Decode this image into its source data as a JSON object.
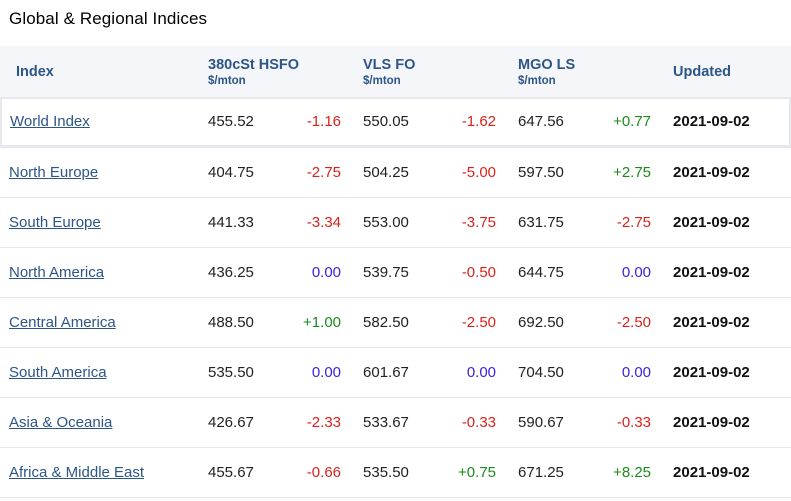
{
  "title": "Global & Regional Indices",
  "columns": {
    "index": "Index",
    "hsfo": {
      "name": "380cSt HSFO",
      "unit": "$/mton"
    },
    "vlsfo": {
      "name": "VLS FO",
      "unit": "$/mton"
    },
    "mgo": {
      "name": "MGO LS",
      "unit": "$/mton"
    },
    "updated": "Updated"
  },
  "colors": {
    "header_text": "#2d5587",
    "negative": "#d9221c",
    "positive": "#1b8a1b",
    "zero": "#3b1ee0"
  },
  "rows": [
    {
      "name": "World Index",
      "hsfo": "455.52",
      "hsfo_chg": "-1.16",
      "vlsfo": "550.05",
      "vlsfo_chg": "-1.62",
      "mgo": "647.56",
      "mgo_chg": "+0.77",
      "updated": "2021-09-02"
    },
    {
      "name": "North Europe",
      "hsfo": "404.75",
      "hsfo_chg": "-2.75",
      "vlsfo": "504.25",
      "vlsfo_chg": "-5.00",
      "mgo": "597.50",
      "mgo_chg": "+2.75",
      "updated": "2021-09-02"
    },
    {
      "name": "South Europe",
      "hsfo": "441.33",
      "hsfo_chg": "-3.34",
      "vlsfo": "553.00",
      "vlsfo_chg": "-3.75",
      "mgo": "631.75",
      "mgo_chg": "-2.75",
      "updated": "2021-09-02"
    },
    {
      "name": "North America",
      "hsfo": "436.25",
      "hsfo_chg": "0.00",
      "vlsfo": "539.75",
      "vlsfo_chg": "-0.50",
      "mgo": "644.75",
      "mgo_chg": "0.00",
      "updated": "2021-09-02"
    },
    {
      "name": "Central America",
      "hsfo": "488.50",
      "hsfo_chg": "+1.00",
      "vlsfo": "582.50",
      "vlsfo_chg": "-2.50",
      "mgo": "692.50",
      "mgo_chg": "-2.50",
      "updated": "2021-09-02"
    },
    {
      "name": "South America",
      "hsfo": "535.50",
      "hsfo_chg": "0.00",
      "vlsfo": "601.67",
      "vlsfo_chg": "0.00",
      "mgo": "704.50",
      "mgo_chg": "0.00",
      "updated": "2021-09-02"
    },
    {
      "name": "Asia & Oceania",
      "hsfo": "426.67",
      "hsfo_chg": "-2.33",
      "vlsfo": "533.67",
      "vlsfo_chg": "-0.33",
      "mgo": "590.67",
      "mgo_chg": "-0.33",
      "updated": "2021-09-02"
    },
    {
      "name": "Africa & Middle East",
      "hsfo": "455.67",
      "hsfo_chg": "-0.66",
      "vlsfo": "535.50",
      "vlsfo_chg": "+0.75",
      "mgo": "671.25",
      "mgo_chg": "+8.25",
      "updated": "2021-09-02"
    }
  ]
}
